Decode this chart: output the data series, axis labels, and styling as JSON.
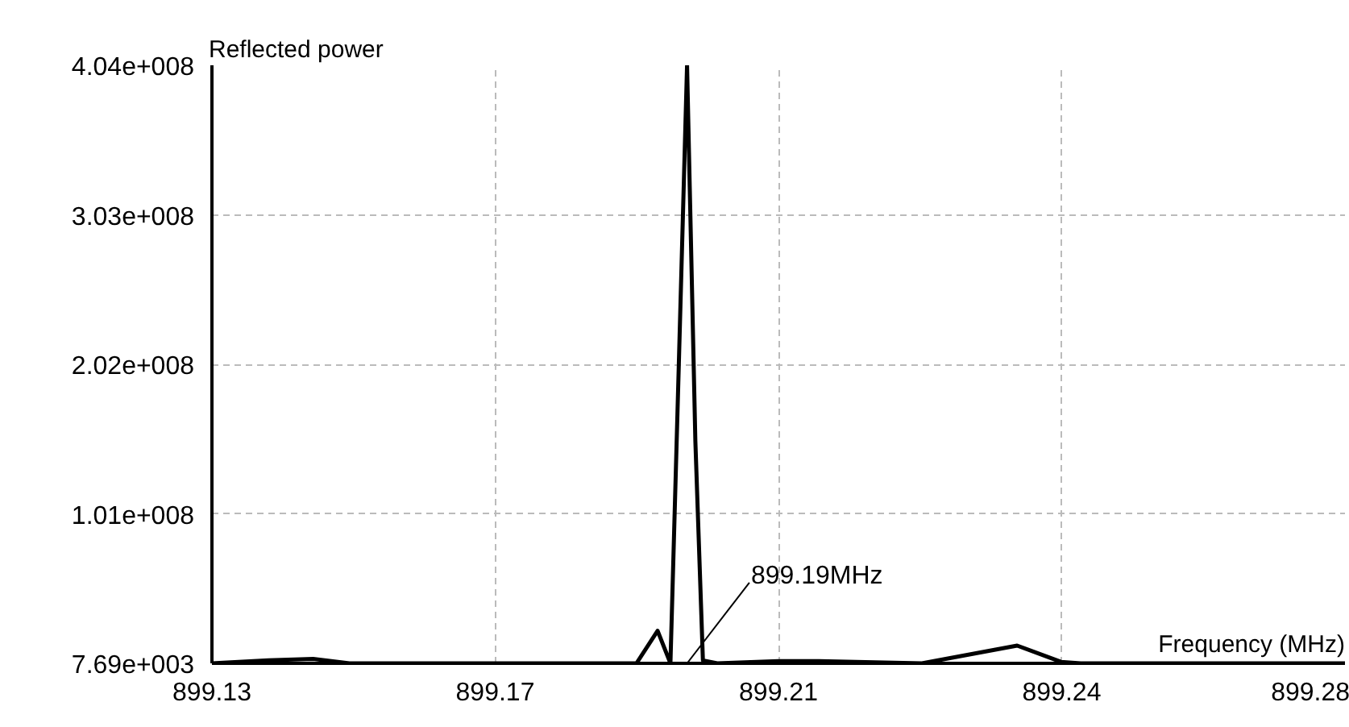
{
  "chart_data": {
    "type": "line",
    "xlabel": "Frequency (MHz)",
    "ylabel": "Reflected power",
    "x": [
      899.13,
      899.1375,
      899.1434,
      899.1482,
      899.1862,
      899.189,
      899.1907,
      899.1918,
      899.1929,
      899.194,
      899.195,
      899.1969,
      899.205,
      899.21,
      899.224,
      899.2366,
      899.2424,
      899.245,
      899.28
    ],
    "series": [
      {
        "color": "#000000",
        "values": [
          7690,
          2000000,
          3000000,
          7690,
          7690,
          22000000,
          7690,
          200000000,
          404000000,
          150000000,
          2000000,
          7690,
          1500000,
          1500000,
          7690,
          12000000,
          1000000,
          7690,
          7690
        ]
      }
    ],
    "xlim": [
      899.13,
      899.28
    ],
    "xticks": [
      {
        "value": 899.13,
        "label": "899.13"
      },
      {
        "value": 899.1675,
        "label": "899.17"
      },
      {
        "value": 899.205,
        "label": "899.21"
      },
      {
        "value": 899.2425,
        "label": "899.24"
      },
      {
        "value": 899.28,
        "label": "899.28"
      }
    ],
    "ylim": [
      7690,
      404000000
    ],
    "yticks": [
      {
        "value": 7690,
        "label": "7.69e+003"
      },
      {
        "value": 101000000,
        "label": "1.01e+008"
      },
      {
        "value": 202000000,
        "label": "2.02e+008"
      },
      {
        "value": 303000000,
        "label": "3.03e+008"
      },
      {
        "value": 404000000,
        "label": "4.04e+008"
      }
    ],
    "annotations": [
      "899.19MHz"
    ],
    "grid": true,
    "line_style": "solid",
    "marker": "none"
  }
}
